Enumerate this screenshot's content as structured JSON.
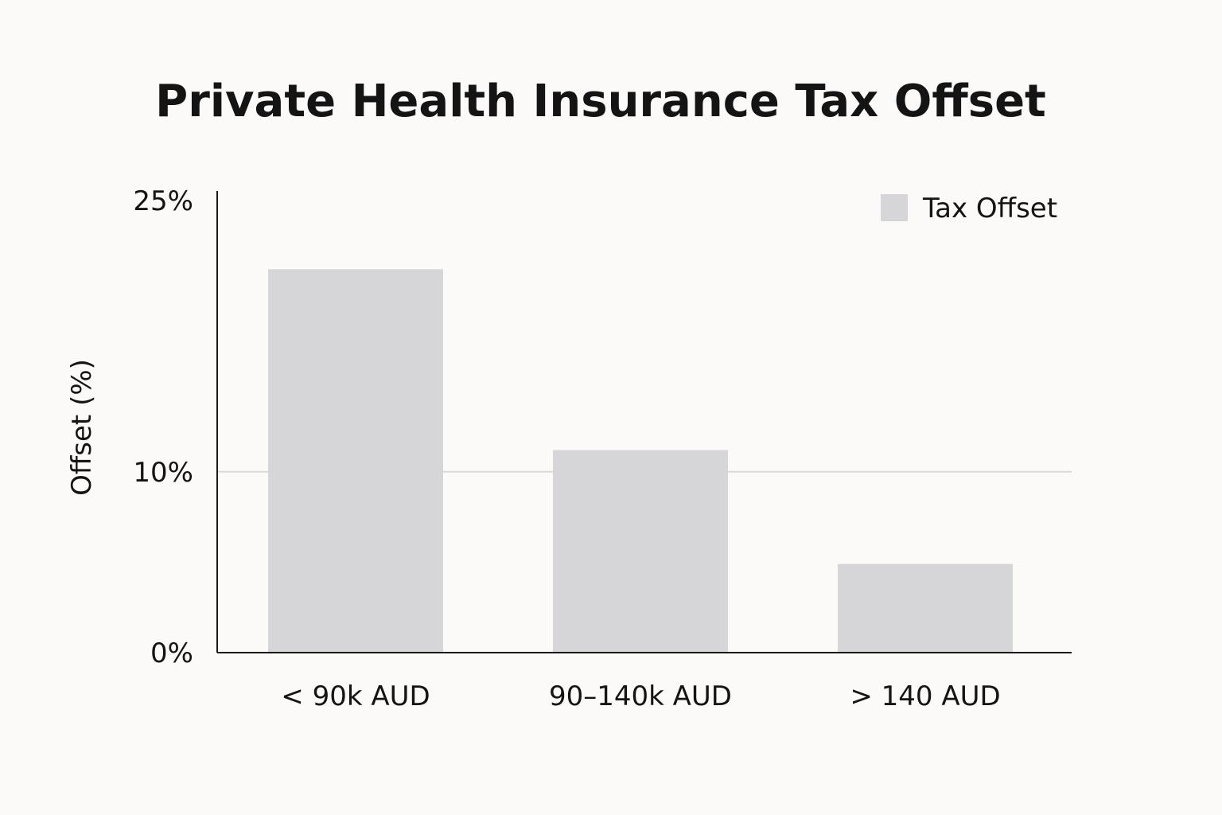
{
  "chart_data": {
    "type": "bar",
    "title": "Private Health Insurance Tax Offset",
    "xlabel": "",
    "ylabel": "Offset (%)",
    "categories": [
      "< 90k AUD",
      "90–140k AUD",
      "> 140 AUD"
    ],
    "series": [
      {
        "name": "Tax Offset",
        "values": [
          21.2,
          11.2,
          4.9
        ],
        "color": "#d6d5d8"
      }
    ],
    "ylim": [
      0,
      25
    ],
    "yticks": [
      {
        "value": 0,
        "label": "0%"
      },
      {
        "value": 10,
        "label": "10%"
      },
      {
        "value": 25,
        "label": "25%"
      }
    ],
    "gridlines": [
      10
    ],
    "grid": true,
    "legend": {
      "position": "top-right",
      "entries": [
        "Tax Offset"
      ]
    },
    "colors": {
      "bar": "#d6d5d8",
      "axis": "#1a1a1a",
      "grid": "#d9d9d9",
      "background": "#fbfaf8"
    }
  }
}
